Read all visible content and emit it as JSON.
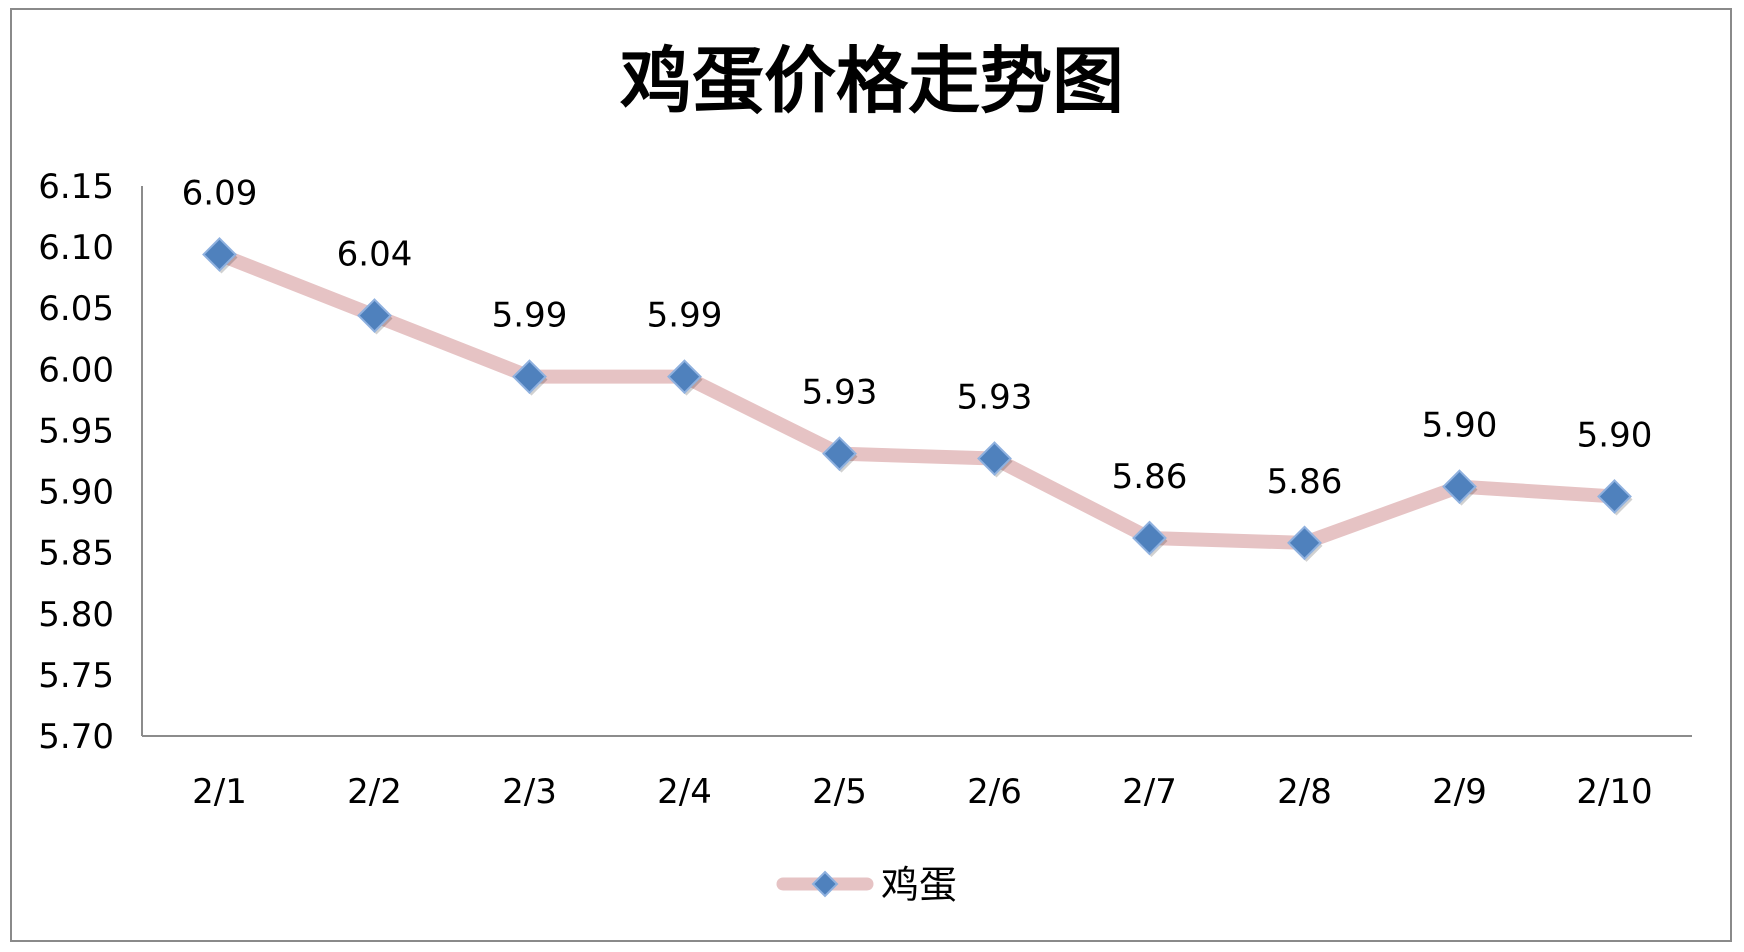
{
  "chart_data": {
    "type": "line",
    "title": "鸡蛋价格走势图",
    "categories": [
      "2/1",
      "2/2",
      "2/3",
      "2/4",
      "2/5",
      "2/6",
      "2/7",
      "2/8",
      "2/9",
      "2/10"
    ],
    "series": [
      {
        "name": "鸡蛋",
        "values": [
          6.094,
          6.044,
          5.994,
          5.994,
          5.931,
          5.927,
          5.862,
          5.858,
          5.904,
          5.896
        ],
        "labels": [
          "6.09",
          "6.04",
          "5.99",
          "5.99",
          "5.93",
          "5.93",
          "5.86",
          "5.86",
          "5.90",
          "5.90"
        ],
        "line_color": "#e6c3c4",
        "marker_color": "#4f81bd",
        "marker": "diamond"
      }
    ],
    "y_ticks": [
      "5.70",
      "5.75",
      "5.80",
      "5.85",
      "5.90",
      "5.95",
      "6.00",
      "6.05",
      "6.10",
      "6.15"
    ],
    "ylim": [
      5.7,
      6.15
    ],
    "xlabel": "",
    "ylabel": "",
    "grid": false,
    "legend": "bottom"
  }
}
